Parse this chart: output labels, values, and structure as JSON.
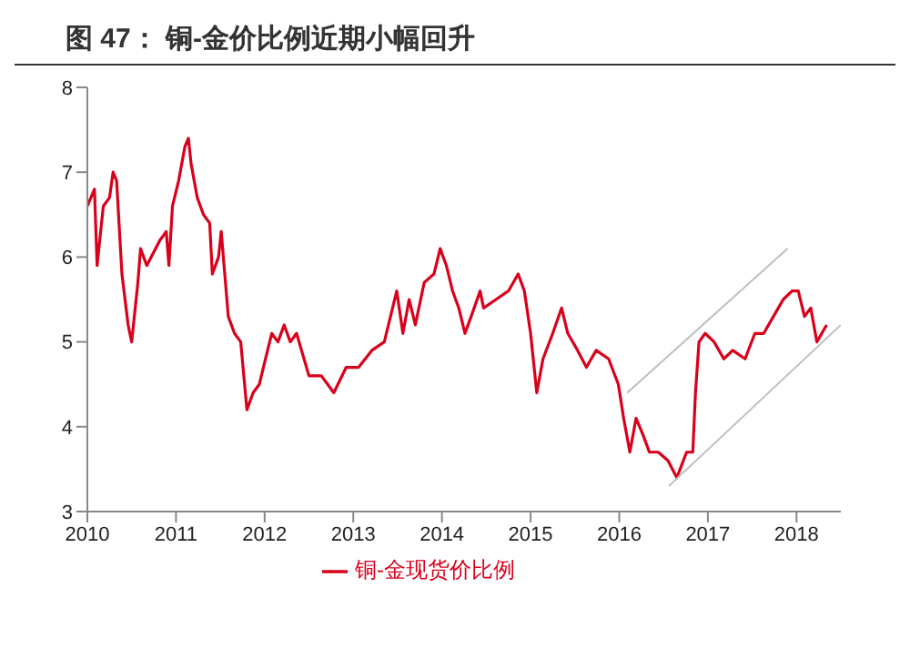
{
  "chart_data": {
    "type": "line",
    "title": "图 47： 铜-金价比例近期小幅回升",
    "xlim": [
      2010,
      2018.5
    ],
    "xticks": [
      2010,
      2011,
      2012,
      2013,
      2014,
      2015,
      2016,
      2017,
      2018
    ],
    "ylim": [
      3,
      8
    ],
    "yticks": [
      3,
      4,
      5,
      6,
      7,
      8
    ],
    "grid": false,
    "legend": "bottom",
    "marker": "none",
    "line_style": "solid",
    "series": [
      {
        "name": "铜-金现货价比例",
        "color": "#d9001b",
        "x": [
          2010.0,
          2010.08,
          2010.11,
          2010.18,
          2010.25,
          2010.29,
          2010.33,
          2010.39,
          2010.46,
          2010.5,
          2010.57,
          2010.6,
          2010.67,
          2010.82,
          2010.89,
          2010.92,
          2010.96,
          2011.03,
          2011.1,
          2011.14,
          2011.17,
          2011.24,
          2011.31,
          2011.38,
          2011.41,
          2011.48,
          2011.51,
          2011.55,
          2011.59,
          2011.66,
          2011.73,
          2011.8,
          2011.87,
          2011.94,
          2012.01,
          2012.08,
          2012.15,
          2012.22,
          2012.29,
          2012.36,
          2012.5,
          2012.64,
          2012.78,
          2012.92,
          2013.06,
          2013.21,
          2013.35,
          2013.49,
          2013.56,
          2013.63,
          2013.7,
          2013.8,
          2013.91,
          2013.98,
          2014.05,
          2014.12,
          2014.19,
          2014.26,
          2014.33,
          2014.43,
          2014.47,
          2014.61,
          2014.75,
          2014.86,
          2014.93,
          2015.0,
          2015.07,
          2015.14,
          2015.25,
          2015.35,
          2015.42,
          2015.53,
          2015.63,
          2015.74,
          2015.88,
          2015.99,
          2016.05,
          2016.12,
          2016.19,
          2016.27,
          2016.34,
          2016.44,
          2016.55,
          2016.65,
          2016.76,
          2016.83,
          2016.86,
          2016.9,
          2016.97,
          2017.07,
          2017.18,
          2017.28,
          2017.42,
          2017.53,
          2017.63,
          2017.74,
          2017.85,
          2017.95,
          2018.02,
          2018.09,
          2018.16,
          2018.23,
          2018.34
        ],
        "values": [
          6.6,
          6.8,
          5.9,
          6.6,
          6.7,
          7.0,
          6.9,
          5.8,
          5.2,
          5.0,
          5.7,
          6.1,
          5.9,
          6.2,
          6.3,
          5.9,
          6.6,
          6.9,
          7.3,
          7.4,
          7.1,
          6.7,
          6.5,
          6.4,
          5.8,
          6.0,
          6.3,
          5.8,
          5.3,
          5.1,
          5.0,
          4.2,
          4.4,
          4.5,
          4.8,
          5.1,
          5.0,
          5.2,
          5.0,
          5.1,
          4.6,
          4.6,
          4.4,
          4.7,
          4.7,
          4.9,
          5.0,
          5.6,
          5.1,
          5.5,
          5.2,
          5.7,
          5.8,
          6.1,
          5.9,
          5.6,
          5.4,
          5.1,
          5.3,
          5.6,
          5.4,
          5.5,
          5.6,
          5.8,
          5.6,
          5.1,
          4.4,
          4.8,
          5.1,
          5.4,
          5.1,
          4.9,
          4.7,
          4.9,
          4.8,
          4.5,
          4.1,
          3.7,
          4.1,
          3.9,
          3.7,
          3.7,
          3.6,
          3.4,
          3.7,
          3.7,
          4.4,
          5.0,
          5.1,
          5.0,
          4.8,
          4.9,
          4.8,
          5.1,
          5.1,
          5.3,
          5.5,
          5.6,
          5.6,
          5.3,
          5.4,
          5.0,
          5.2
        ]
      },
      {
        "color": "#bfbfbf",
        "x": [
          2016.09,
          2017.9
        ],
        "values": [
          4.4,
          6.1
        ]
      },
      {
        "color": "#bfbfbf",
        "x": [
          2016.56,
          2018.5
        ],
        "values": [
          3.3,
          5.2
        ]
      }
    ]
  }
}
